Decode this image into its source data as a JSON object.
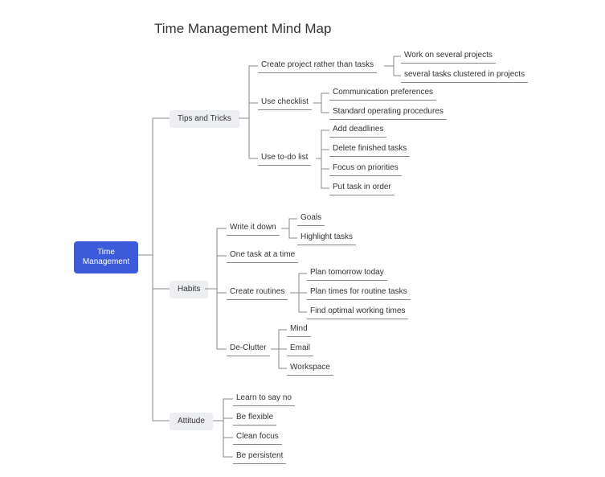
{
  "diagram": {
    "type": "mindmap",
    "title": "Time Management Mind Map",
    "background_color": "#ffffff",
    "connector_color": "#888888",
    "text_color": "#333333",
    "root": {
      "label": "Time\nManagement",
      "bg_color": "#3b5bdb",
      "text_color": "#ffffff"
    },
    "branch_bg_color": "#eceef2",
    "branches": {
      "tips": {
        "label": "Tips and Tricks",
        "children": {
          "create_project": {
            "label": "Create project rather than tasks",
            "children": {
              "work_several": "Work on several projects",
              "tasks_clustered": "several tasks clustered in projects"
            }
          },
          "use_checklist": {
            "label": "Use checklist",
            "children": {
              "comm_prefs": "Communication preferences",
              "sops": "Standard operating procedures"
            }
          },
          "use_todo": {
            "label": "Use to-do list",
            "children": {
              "add_deadlines": "Add deadlines",
              "delete_finished": "Delete finished tasks",
              "focus_priorities": "Focus on priorities",
              "put_order": "Put task in order"
            }
          }
        }
      },
      "habits": {
        "label": "Habits",
        "children": {
          "write_down": {
            "label": "Write it down",
            "children": {
              "goals": "Goals",
              "highlight": "Highlight tasks"
            }
          },
          "one_task": {
            "label": "One task at a time"
          },
          "create_routines": {
            "label": "Create routines",
            "children": {
              "plan_tomorrow": "Plan tomorrow today",
              "plan_times": "Plan times for routine tasks",
              "find_optimal": "Find optimal working times"
            }
          },
          "declutter": {
            "label": "De-Clutter",
            "children": {
              "mind": "Mind",
              "email": "Email",
              "workspace": "Workspace"
            }
          }
        }
      },
      "attitude": {
        "label": "Attitude",
        "children": {
          "say_no": "Learn to say no",
          "flexible": "Be flexible",
          "clean_focus": "Clean focus",
          "persistent": "Be persistent"
        }
      }
    }
  }
}
